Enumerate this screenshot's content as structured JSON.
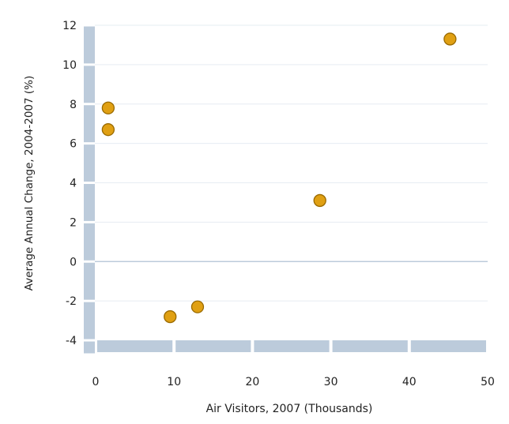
{
  "chart_data": {
    "type": "scatter",
    "title": "",
    "xlabel": "Air Visitors, 2007 (Thousands)",
    "ylabel": "Average Annual Change, 2004-2007 (%)",
    "xlim": [
      0,
      50
    ],
    "ylim": [
      -4,
      12
    ],
    "x_ticks": [
      0,
      10,
      20,
      30,
      40,
      50
    ],
    "y_ticks": [
      -4,
      -2,
      0,
      2,
      4,
      6,
      8,
      10,
      12
    ],
    "x_tick_labels": [
      "0",
      "10",
      "20",
      "30",
      "40",
      "50"
    ],
    "y_tick_labels": [
      "-4",
      "-2",
      "0",
      "2",
      "4",
      "6",
      "8",
      "10",
      "12"
    ],
    "grid": true,
    "legend": "none",
    "series": [
      {
        "points": [
          {
            "x": 1.6,
            "y": 7.8
          },
          {
            "x": 1.6,
            "y": 6.7
          },
          {
            "x": 9.5,
            "y": -2.8
          },
          {
            "x": 13.0,
            "y": -2.3
          },
          {
            "x": 28.6,
            "y": 3.1
          },
          {
            "x": 45.2,
            "y": 11.3
          }
        ]
      }
    ],
    "colors": {
      "marker_fill": "#e0a013",
      "marker_stroke": "#9a6a00",
      "axis_band": "#bccbdb",
      "gridline": "#e6ecf2",
      "zero_line": "#bccbdb"
    }
  }
}
